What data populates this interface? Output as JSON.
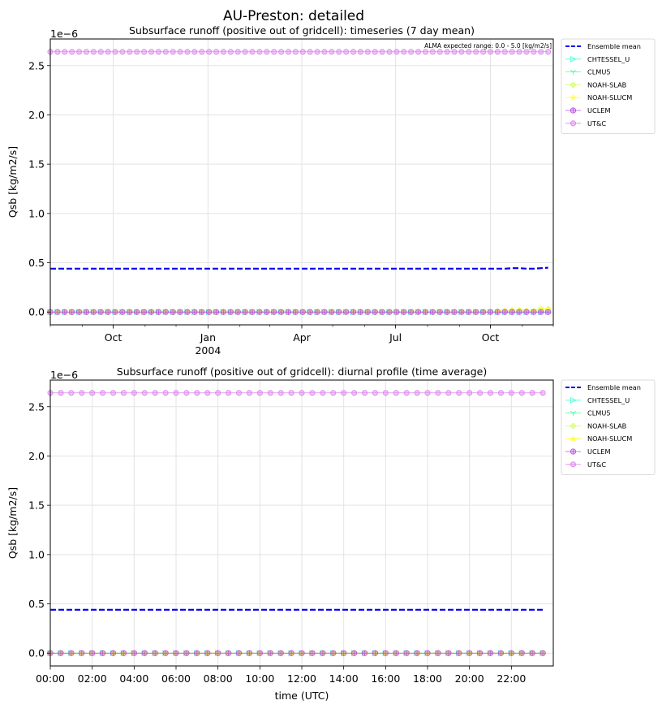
{
  "suptitle": "AU-Preston: detailed",
  "legend_entries": [
    {
      "name": "Ensemble mean",
      "color": "#0000ee",
      "marker": "dash"
    },
    {
      "name": "CHTESSEL_U",
      "color": "#4dffd9",
      "marker": "tri-right"
    },
    {
      "name": "CLMU5",
      "color": "#40ffa0",
      "marker": "tri-down"
    },
    {
      "name": "NOAH-SLAB",
      "color": "#ccff55",
      "marker": "diamond"
    },
    {
      "name": "NOAH-SLUCM",
      "color": "#ffff33",
      "marker": "star"
    },
    {
      "name": "UCLEM",
      "color": "#bb55e8",
      "marker": "plus-circle"
    },
    {
      "name": "UT&C",
      "color": "#dd88ee",
      "marker": "octagon"
    }
  ],
  "chart_data": [
    {
      "type": "line",
      "title": "Subsurface runoff (positive out of gridcell): timeseries (7 day mean)",
      "annotation": "ALMA expected range: 0.0 - 5.0 [kg/m2/s]",
      "ylabel": "Qsb [kg/m2/s]",
      "xlabel": "",
      "y_offset_label": "1e−6",
      "ylim": [
        -0.13,
        2.77
      ],
      "xlim": [
        "2003-08-01",
        "2004-12-01"
      ],
      "yticks": [
        "0.0",
        "0.5",
        "1.0",
        "1.5",
        "2.0",
        "2.5"
      ],
      "ytick_values": [
        0.0,
        0.5,
        1.0,
        1.5,
        2.0,
        2.5
      ],
      "xtick_major": [
        {
          "date": "2003-10-01",
          "label": "Oct"
        },
        {
          "date": "2004-01-01",
          "label": "Jan",
          "label2": "2004"
        },
        {
          "date": "2004-04-01",
          "label": "Apr"
        },
        {
          "date": "2004-07-01",
          "label": "Jul"
        },
        {
          "date": "2004-10-01",
          "label": "Oct"
        }
      ],
      "grid": true,
      "legend": "outside-right",
      "x_start": "2003-08-01",
      "x_step_days": 7,
      "n_points": 70,
      "series": [
        {
          "name": "Ensemble mean",
          "constant": 0.44,
          "end_values": [
            0.44,
            0.44,
            0.445,
            0.445,
            0.44,
            0.44,
            0.445,
            0.45
          ]
        },
        {
          "name": "CHTESSEL_U",
          "constant": 0.0
        },
        {
          "name": "CLMU5",
          "constant": 0.0
        },
        {
          "name": "NOAH-SLAB",
          "constant": 0.0,
          "end_values": [
            0.01,
            0.015,
            0.02,
            0.02,
            0.015,
            0.01,
            0.03,
            0.03
          ]
        },
        {
          "name": "NOAH-SLUCM",
          "constant": 0.0,
          "end_values": [
            0.01,
            0.015,
            0.02,
            0.02,
            0.015,
            0.01,
            0.035,
            0.03
          ]
        },
        {
          "name": "UCLEM",
          "constant": 0.0
        },
        {
          "name": "UT&C",
          "constant": 2.64
        }
      ]
    },
    {
      "type": "line",
      "title": "Subsurface runoff (positive out of gridcell): diurnal profile (time average)",
      "ylabel": "Qsb [kg/m2/s]",
      "xlabel": "time (UTC)",
      "y_offset_label": "1e−6",
      "ylim": [
        -0.13,
        2.77
      ],
      "xlim": [
        0,
        24
      ],
      "yticks": [
        "0.0",
        "0.5",
        "1.0",
        "1.5",
        "2.0",
        "2.5"
      ],
      "ytick_values": [
        0.0,
        0.5,
        1.0,
        1.5,
        2.0,
        2.5
      ],
      "xticks": [
        "00:00",
        "02:00",
        "04:00",
        "06:00",
        "08:00",
        "10:00",
        "12:00",
        "14:00",
        "16:00",
        "18:00",
        "20:00",
        "22:00"
      ],
      "xtick_values": [
        0,
        2,
        4,
        6,
        8,
        10,
        12,
        14,
        16,
        18,
        20,
        22
      ],
      "grid": true,
      "legend": "outside-right",
      "x_start": 0,
      "x_step": 0.5,
      "n_points": 48,
      "series": [
        {
          "name": "Ensemble mean",
          "constant": 0.44
        },
        {
          "name": "CHTESSEL_U",
          "constant": 0.0
        },
        {
          "name": "CLMU5",
          "constant": 0.0
        },
        {
          "name": "NOAH-SLAB",
          "constant": 0.0
        },
        {
          "name": "NOAH-SLUCM",
          "constant": 0.0
        },
        {
          "name": "UCLEM",
          "constant": 0.0
        },
        {
          "name": "UT&C",
          "constant": 2.64
        }
      ]
    }
  ]
}
